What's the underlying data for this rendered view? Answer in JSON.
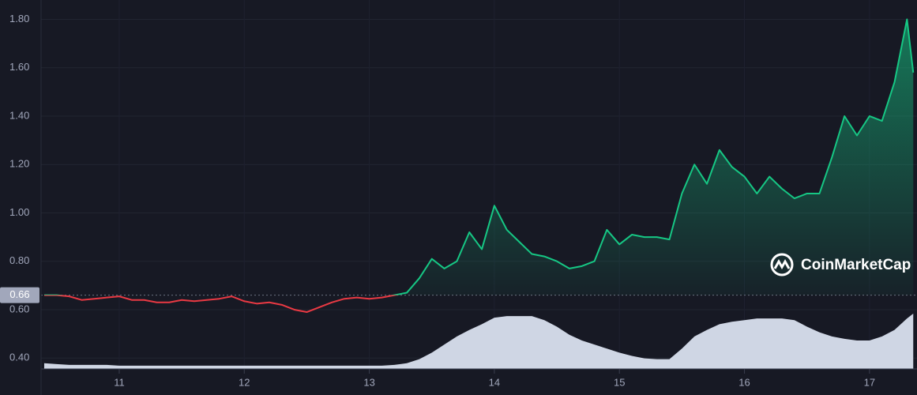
{
  "chart_data": {
    "type": "line",
    "x": [
      10.4,
      10.5,
      10.6,
      10.7,
      10.8,
      10.9,
      11.0,
      11.1,
      11.2,
      11.3,
      11.4,
      11.5,
      11.6,
      11.7,
      11.8,
      11.9,
      12.0,
      12.1,
      12.2,
      12.3,
      12.4,
      12.5,
      12.6,
      12.7,
      12.8,
      12.9,
      13.0,
      13.1,
      13.2,
      13.3,
      13.4,
      13.5,
      13.6,
      13.7,
      13.8,
      13.9,
      14.0,
      14.1,
      14.2,
      14.3,
      14.4,
      14.5,
      14.6,
      14.7,
      14.8,
      14.9,
      15.0,
      15.1,
      15.2,
      15.3,
      15.4,
      15.5,
      15.6,
      15.7,
      15.8,
      15.9,
      16.0,
      16.1,
      16.2,
      16.3,
      16.4,
      16.5,
      16.6,
      16.7,
      16.8,
      16.9,
      17.0,
      17.1,
      17.2,
      17.3,
      17.35
    ],
    "series": [
      {
        "values": [
          0.66,
          0.66,
          0.655,
          0.64,
          0.645,
          0.65,
          0.655,
          0.64,
          0.64,
          0.63,
          0.63,
          0.64,
          0.635,
          0.64,
          0.645,
          0.655,
          0.635,
          0.625,
          0.63,
          0.62,
          0.6,
          0.59,
          0.61,
          0.63,
          0.645,
          0.65,
          0.645,
          0.65,
          0.66,
          0.67,
          0.73,
          0.81,
          0.77,
          0.8,
          0.92,
          0.85,
          1.03,
          0.93,
          0.88,
          0.83,
          0.82,
          0.8,
          0.77,
          0.78,
          0.8,
          0.93,
          0.87,
          0.91,
          0.9,
          0.9,
          0.89,
          1.08,
          1.2,
          1.12,
          1.26,
          1.19,
          1.15,
          1.08,
          1.15,
          1.1,
          1.06,
          1.08,
          1.08,
          1.23,
          1.4,
          1.32,
          1.4,
          1.38,
          1.54,
          1.8,
          1.58
        ],
        "color": "#16c784",
        "color_below": "#ea3943"
      }
    ],
    "volume": {
      "color": "#cfd6e4",
      "values": [
        7,
        6,
        5,
        5,
        5,
        5,
        4,
        4,
        4,
        4,
        4,
        4,
        4,
        4,
        4,
        4,
        4,
        4,
        4,
        4,
        4,
        4,
        4,
        4,
        4,
        4,
        4,
        4,
        5,
        7,
        12,
        20,
        30,
        40,
        48,
        55,
        63,
        65,
        65,
        65,
        60,
        52,
        42,
        35,
        30,
        25,
        20,
        16,
        13,
        12,
        12,
        25,
        40,
        48,
        55,
        58,
        60,
        62,
        62,
        62,
        60,
        52,
        45,
        40,
        37,
        35,
        35,
        40,
        48,
        62,
        68
      ]
    },
    "reference_line": 0.66,
    "ylim": [
      0.355,
      1.88
    ],
    "yticks": [
      {
        "value": 0.4,
        "label": "0.40"
      },
      {
        "value": 0.6,
        "label": "0.60"
      },
      {
        "value": 0.8,
        "label": "0.80"
      },
      {
        "value": 1.0,
        "label": "1.00"
      },
      {
        "value": 1.2,
        "label": "1.20"
      },
      {
        "value": 1.4,
        "label": "1.40"
      },
      {
        "value": 1.6,
        "label": "1.60"
      },
      {
        "value": 1.8,
        "label": "1.80"
      }
    ],
    "xlim": [
      10.375,
      17.38
    ],
    "xticks": [
      11,
      12,
      13,
      14,
      15,
      16,
      17
    ],
    "grid": true,
    "watermark": "CoinMarketCap"
  }
}
